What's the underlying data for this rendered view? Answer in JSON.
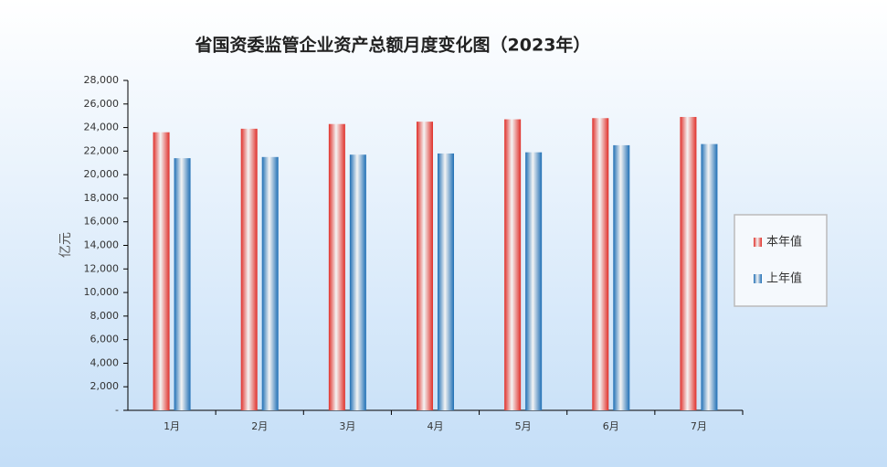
{
  "chart_data": {
    "type": "bar",
    "title": "省国资委监管企业资产总额月度变化图（2023年）",
    "y_label": "亿元",
    "categories": [
      "1月",
      "2月",
      "3月",
      "4月",
      "5月",
      "6月",
      "7月"
    ],
    "series": [
      {
        "name": "本年值",
        "color": "#e0302a",
        "values": [
          23600,
          23900,
          24300,
          24500,
          24700,
          24800,
          24900
        ]
      },
      {
        "name": "上年值",
        "color": "#1f6fb5",
        "values": [
          21400,
          21500,
          21700,
          21800,
          21900,
          22500,
          22600
        ]
      }
    ],
    "ylim": [
      0,
      28000
    ],
    "yticks": [
      {
        "value": 0,
        "label": "-"
      },
      {
        "value": 2000,
        "label": "2,000"
      },
      {
        "value": 4000,
        "label": "4,000"
      },
      {
        "value": 6000,
        "label": "6,000"
      },
      {
        "value": 8000,
        "label": "8,000"
      },
      {
        "value": 10000,
        "label": "10,000"
      },
      {
        "value": 12000,
        "label": "12,000"
      },
      {
        "value": 14000,
        "label": "14,000"
      },
      {
        "value": 16000,
        "label": "16,000"
      },
      {
        "value": 18000,
        "label": "18,000"
      },
      {
        "value": 20000,
        "label": "20,000"
      },
      {
        "value": 22000,
        "label": "22,000"
      },
      {
        "value": 24000,
        "label": "24,000"
      },
      {
        "value": 26000,
        "label": "26,000"
      },
      {
        "value": 28000,
        "label": "28,000"
      }
    ],
    "legend": "right"
  }
}
